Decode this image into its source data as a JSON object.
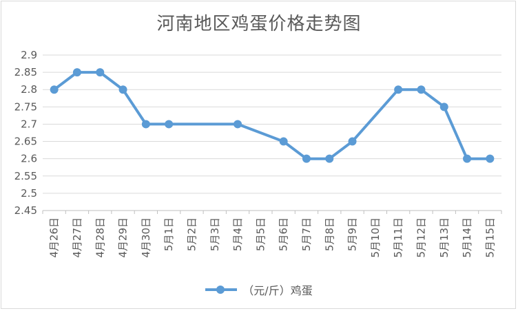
{
  "chart_data": {
    "type": "line",
    "title": "河南地区鸡蛋价格走势图",
    "categories": [
      "4月26日",
      "4月27日",
      "4月28日",
      "4月29日",
      "4月30日",
      "5月1日",
      "5月2日",
      "5月3日",
      "5月4日",
      "5月5日",
      "5月6日",
      "5月7日",
      "5月8日",
      "5月9日",
      "5月10日",
      "5月11日",
      "5月12日",
      "5月13日",
      "5月14日",
      "5月15日"
    ],
    "series": [
      {
        "name": "（元/斤）鸡蛋",
        "values": [
          2.8,
          2.85,
          2.85,
          2.8,
          2.7,
          2.7,
          null,
          null,
          2.7,
          null,
          2.65,
          2.6,
          2.6,
          2.65,
          null,
          2.8,
          2.8,
          2.75,
          2.6,
          2.6
        ],
        "color": "#5b9bd5"
      }
    ],
    "ylim": [
      2.45,
      2.9
    ],
    "yticks": [
      "2.45",
      "2.5",
      "2.55",
      "2.6",
      "2.65",
      "2.7",
      "2.75",
      "2.8",
      "2.85",
      "2.9"
    ],
    "xlabel": "",
    "ylabel": "",
    "grid": true,
    "legend_position": "bottom"
  }
}
